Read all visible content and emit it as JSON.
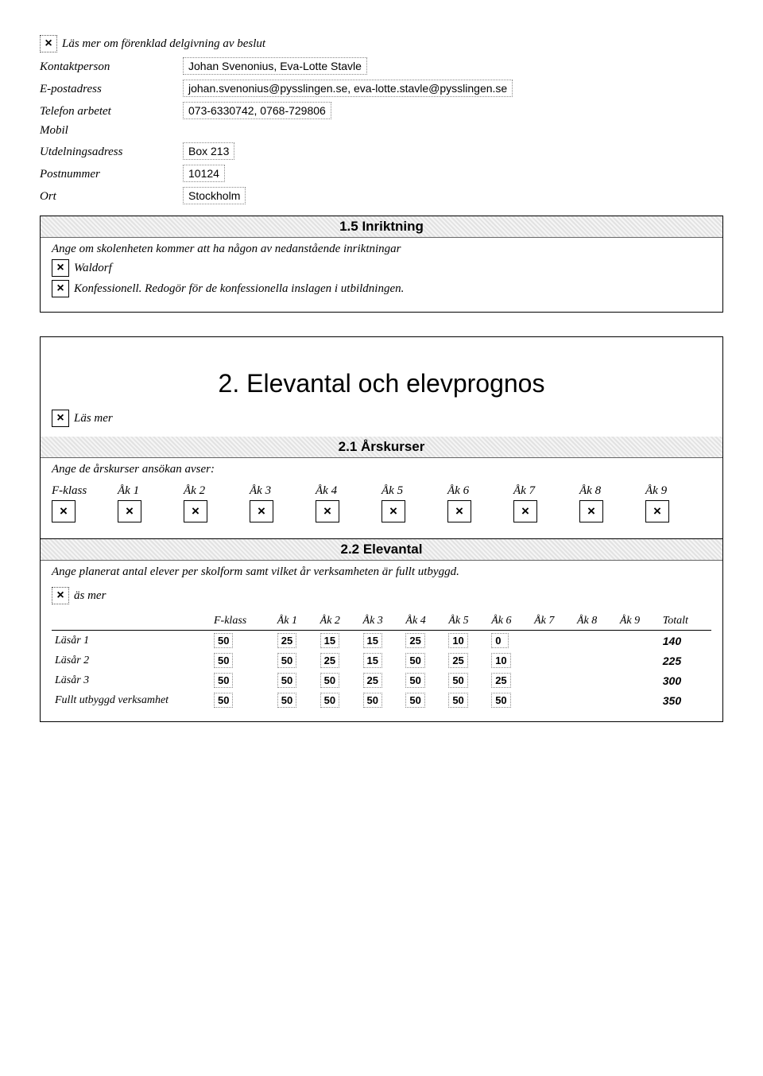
{
  "top": {
    "lasmer_label": "Läs mer om förenklad delgivning av beslut",
    "fields": {
      "kontaktperson_label": "Kontaktperson",
      "kontaktperson_value": "Johan Svenonius, Eva-Lotte Stavle",
      "epost_label": "E-postadress",
      "epost_value": "johan.svenonius@pysslingen.se, eva-lotte.stavle@pysslingen.se",
      "telefon_label": "Telefon arbetet",
      "telefon_value": "073-6330742, 0768-729806",
      "mobil_label": "Mobil",
      "utdelning_label": "Utdelningsadress",
      "utdelning_value": "Box 213",
      "postnr_label": "Postnummer",
      "postnr_value": "10124",
      "ort_label": "Ort",
      "ort_value": "Stockholm"
    }
  },
  "s15": {
    "title": "1.5 Inriktning",
    "intro": "Ange om skolenheten kommer att ha någon av nedanstående inriktningar",
    "waldorf_label": "Waldorf",
    "konf_label": "Konfessionell. Redogör för de konfessionella inslagen i utbildningen."
  },
  "s2": {
    "heading": "2. Elevantal och elevprognos",
    "lasmer": "Läs mer"
  },
  "s21": {
    "title": "2.1 Årskurser",
    "intro": "Ange de årskurser ansökan avser:",
    "labels": [
      "F-klass",
      "Åk 1",
      "Åk 2",
      "Åk 3",
      "Åk 4",
      "Åk 5",
      "Åk 6",
      "Åk 7",
      "Åk 8",
      "Åk 9"
    ],
    "checks": [
      "×",
      "×",
      "×",
      "×",
      "×",
      "×",
      "×",
      "×",
      "×",
      "×"
    ]
  },
  "s22": {
    "title": "2.2 Elevantal",
    "intro": "Ange planerat antal elever per skolform samt vilket år verksamheten är fullt utbyggd.",
    "lasmer": "äs mer",
    "headers": [
      "",
      "F-klass",
      "Åk 1",
      "Åk 2",
      "Åk 3",
      "Åk 4",
      "Åk 5",
      "Åk 6",
      "Åk 7",
      "Åk 8",
      "Åk 9",
      "Totalt"
    ],
    "rows": [
      {
        "label": "Läsår 1",
        "vals": [
          "50",
          "25",
          "15",
          "15",
          "25",
          "10",
          "0",
          "",
          "",
          ""
        ],
        "total": "140"
      },
      {
        "label": "Läsår 2",
        "vals": [
          "50",
          "50",
          "25",
          "15",
          "50",
          "25",
          "10",
          "",
          "",
          ""
        ],
        "total": "225"
      },
      {
        "label": "Läsår 3",
        "vals": [
          "50",
          "50",
          "50",
          "25",
          "50",
          "50",
          "25",
          "",
          "",
          ""
        ],
        "total": "300"
      },
      {
        "label": "Fullt utbyggd verksamhet",
        "vals": [
          "50",
          "50",
          "50",
          "50",
          "50",
          "50",
          "50",
          "",
          "",
          ""
        ],
        "total": "350"
      }
    ]
  },
  "glyph_x": "×"
}
